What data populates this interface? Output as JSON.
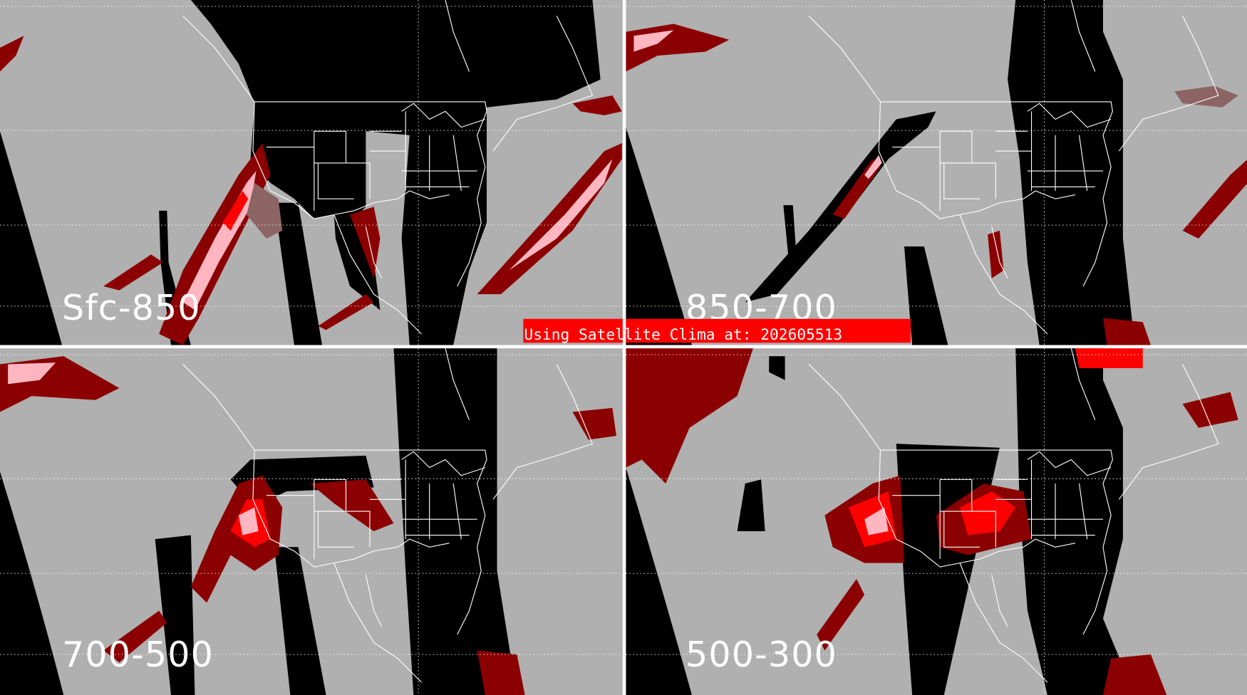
{
  "colors": {
    "clear_sky": "#b0b0b0",
    "no_data": "#000000",
    "cloud_dark_red": "#8b0000",
    "cloud_red": "#ff0000",
    "cloud_pink": "#ffb6c1",
    "cloud_brownish": "#8c6464",
    "banner": "#ff0000",
    "outlines": "#ffffff"
  },
  "panels": [
    {
      "label": "Sfc-850"
    },
    {
      "label": "850-700"
    },
    {
      "label": "700-500"
    },
    {
      "label": "500-300"
    }
  ],
  "banner": {
    "text": "Using Satellite Clima at: 202605513"
  }
}
